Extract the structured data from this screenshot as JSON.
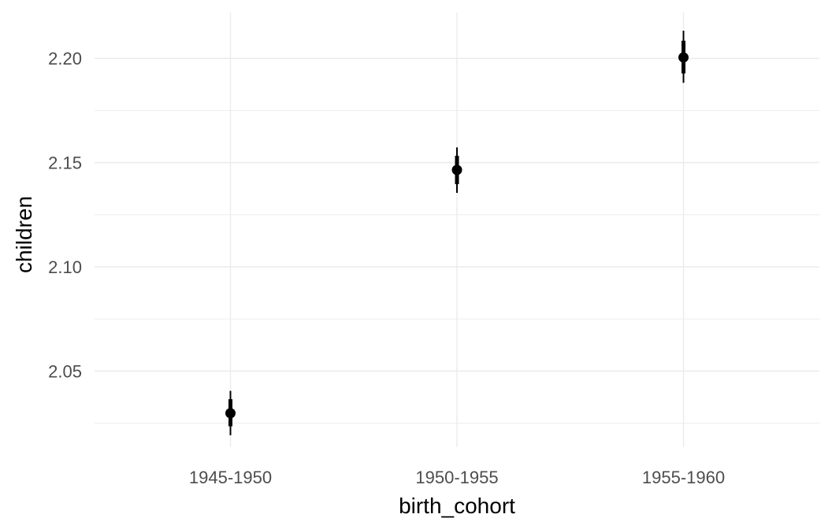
{
  "chart_data": {
    "type": "pointrange",
    "title": "",
    "xlabel": "birth_cohort",
    "ylabel": "children",
    "categories": [
      "1945-1950",
      "1950-1955",
      "1955-1960"
    ],
    "ylim": [
      2.0135,
      2.222
    ],
    "y_ticks": [
      "2.05",
      "2.10",
      "2.15",
      "2.20"
    ],
    "y_minor_ticks": [
      2.025,
      2.075,
      2.125,
      2.175
    ],
    "grid": true,
    "legend": "none",
    "points": [
      {
        "category": "1945-1950",
        "y": 2.0298,
        "inner": [
          2.0235,
          2.0365
        ],
        "outer": [
          2.0192,
          2.0405
        ]
      },
      {
        "category": "1950-1955",
        "y": 2.1465,
        "inner": [
          2.1397,
          2.1533
        ],
        "outer": [
          2.1355,
          2.1573
        ]
      },
      {
        "category": "1955-1960",
        "y": 2.2005,
        "inner": [
          2.1928,
          2.2085
        ],
        "outer": [
          2.1883,
          2.2133
        ]
      }
    ],
    "colors": {
      "point": "#000000",
      "grid": "#ebebeb",
      "tick_text": "#4d4d4d",
      "title_text": "#000000"
    }
  }
}
